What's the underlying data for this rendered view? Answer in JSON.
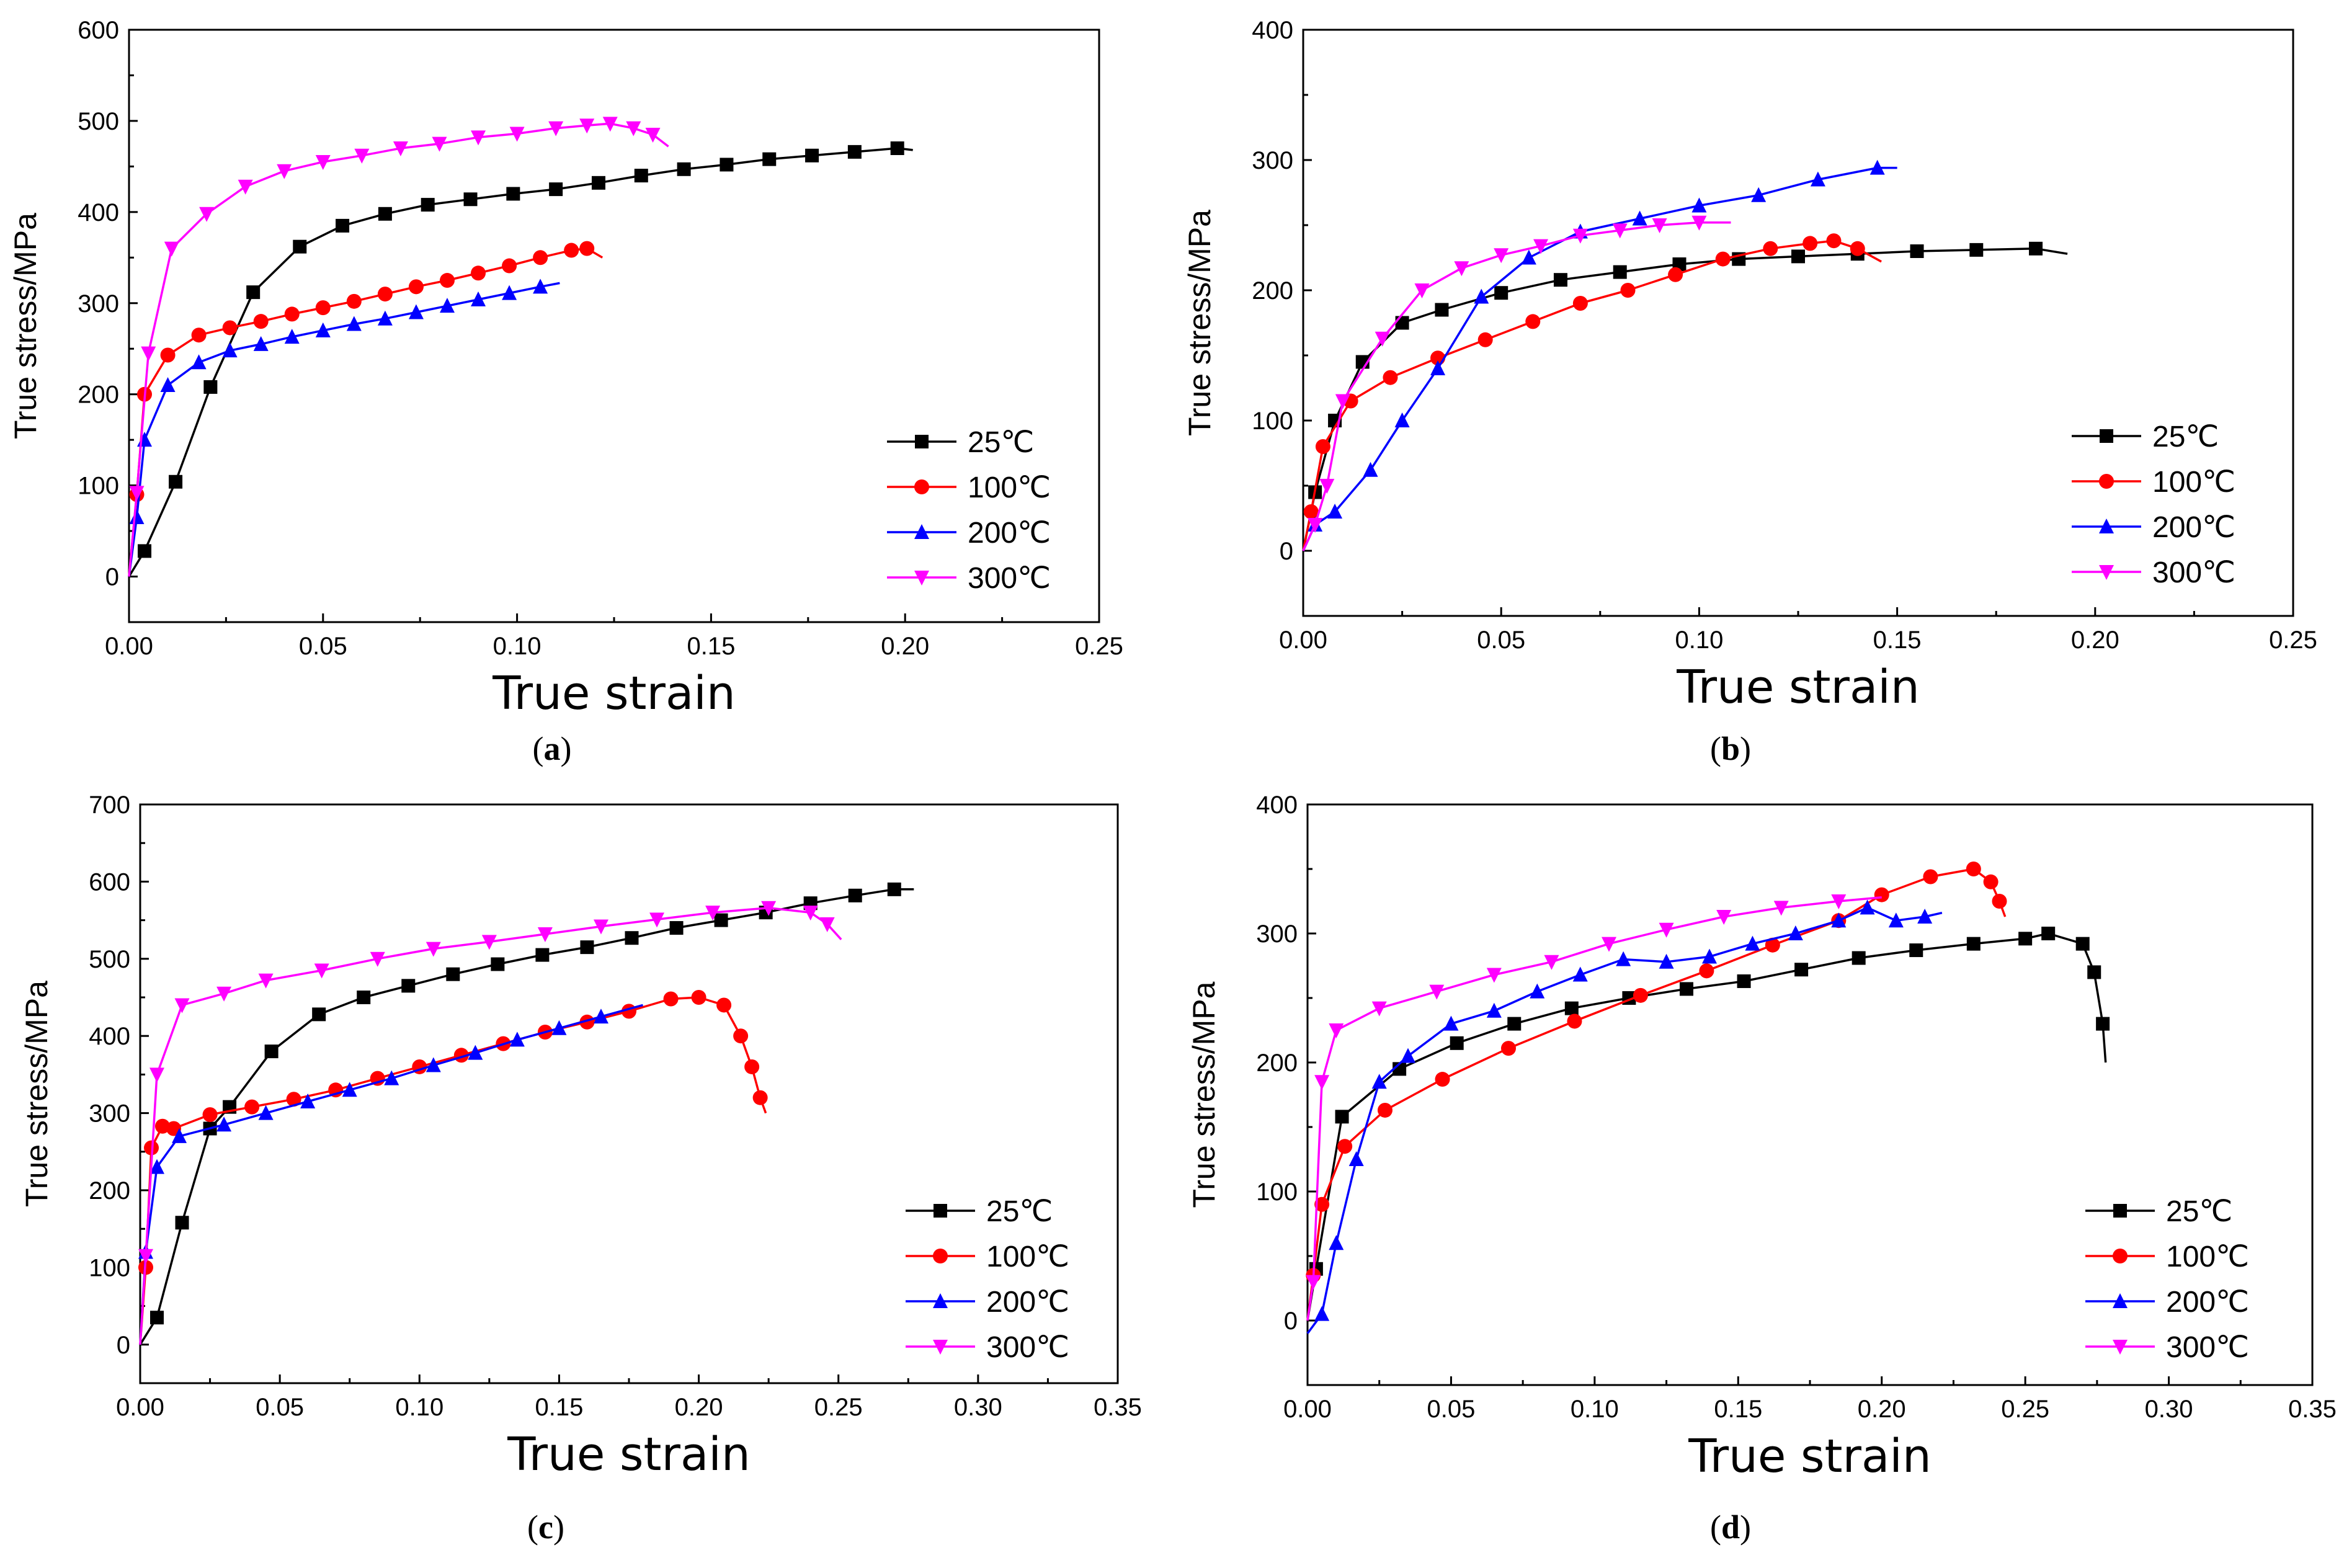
{
  "figure": {
    "panel_labels": [
      "(a)",
      "(b)",
      "(c)",
      "(d)"
    ],
    "series_colors": {
      "25℃": "#000000",
      "100℃": "#ff0000",
      "200℃": "#0000ff",
      "300℃": "#ff00ff"
    },
    "series_markers": {
      "25℃": "square",
      "100℃": "circle",
      "200℃": "triangle-up",
      "300℃": "triangle-down"
    }
  },
  "chart_data": [
    {
      "panel": "a",
      "type": "line",
      "xlabel": "True strain",
      "ylabel": "True stress/MPa",
      "xlim": [
        0,
        0.25
      ],
      "ylim": [
        -50,
        600
      ],
      "xticks": [
        "0.00",
        "0.05",
        "0.10",
        "0.15",
        "0.20",
        "0.25"
      ],
      "yticks": [
        "0",
        "100",
        "200",
        "300",
        "400",
        "500",
        "600"
      ],
      "legend_position": "bottom-right",
      "series": [
        {
          "name": "25℃",
          "x": [
            0,
            0.004,
            0.012,
            0.021,
            0.032,
            0.044,
            0.055,
            0.066,
            0.077,
            0.088,
            0.099,
            0.11,
            0.121,
            0.132,
            0.143,
            0.154,
            0.165,
            0.176,
            0.187,
            0.198,
            0.202
          ],
          "y": [
            0,
            28,
            104,
            208,
            312,
            362,
            385,
            398,
            408,
            414,
            420,
            425,
            432,
            440,
            447,
            452,
            458,
            462,
            466,
            470,
            468
          ]
        },
        {
          "name": "100℃",
          "x": [
            0,
            0.002,
            0.004,
            0.01,
            0.018,
            0.026,
            0.034,
            0.042,
            0.05,
            0.058,
            0.066,
            0.074,
            0.082,
            0.09,
            0.098,
            0.106,
            0.114,
            0.118,
            0.122
          ],
          "y": [
            0,
            90,
            200,
            243,
            265,
            273,
            280,
            288,
            295,
            302,
            310,
            318,
            325,
            333,
            341,
            350,
            358,
            360,
            350
          ]
        },
        {
          "name": "200℃",
          "x": [
            0,
            0.002,
            0.004,
            0.01,
            0.018,
            0.026,
            0.034,
            0.042,
            0.05,
            0.058,
            0.066,
            0.074,
            0.082,
            0.09,
            0.098,
            0.106,
            0.111
          ],
          "y": [
            0,
            65,
            150,
            210,
            235,
            248,
            255,
            263,
            270,
            277,
            283,
            290,
            297,
            304,
            311,
            318,
            322
          ]
        },
        {
          "name": "300℃",
          "x": [
            0,
            0.002,
            0.005,
            0.011,
            0.02,
            0.03,
            0.04,
            0.05,
            0.06,
            0.07,
            0.08,
            0.09,
            0.1,
            0.11,
            0.118,
            0.124,
            0.13,
            0.135,
            0.139
          ],
          "y": [
            0,
            92,
            245,
            360,
            398,
            428,
            445,
            455,
            462,
            470,
            475,
            482,
            486,
            492,
            495,
            497,
            492,
            485,
            472
          ]
        }
      ]
    },
    {
      "panel": "b",
      "type": "line",
      "xlabel": "True strain",
      "ylabel": "True stress/MPa",
      "xlim": [
        0,
        0.25
      ],
      "ylim": [
        -50,
        400
      ],
      "xticks": [
        "0.00",
        "0.05",
        "0.10",
        "0.15",
        "0.20",
        "0.25"
      ],
      "yticks": [
        "0",
        "100",
        "200",
        "300",
        "400"
      ],
      "legend_position": "bottom-right",
      "series": [
        {
          "name": "25℃",
          "x": [
            0,
            0.003,
            0.008,
            0.015,
            0.025,
            0.035,
            0.05,
            0.065,
            0.08,
            0.095,
            0.11,
            0.125,
            0.14,
            0.155,
            0.17,
            0.185,
            0.193
          ],
          "y": [
            0,
            45,
            100,
            145,
            175,
            185,
            198,
            208,
            214,
            220,
            224,
            226,
            228,
            230,
            231,
            232,
            228
          ]
        },
        {
          "name": "100℃",
          "x": [
            0,
            0.002,
            0.005,
            0.012,
            0.022,
            0.034,
            0.046,
            0.058,
            0.07,
            0.082,
            0.094,
            0.106,
            0.118,
            0.128,
            0.134,
            0.14,
            0.146
          ],
          "y": [
            0,
            30,
            80,
            115,
            133,
            148,
            162,
            176,
            190,
            200,
            212,
            224,
            232,
            236,
            238,
            232,
            222
          ]
        },
        {
          "name": "200℃",
          "x": [
            0,
            0.003,
            0.008,
            0.017,
            0.025,
            0.034,
            0.045,
            0.057,
            0.07,
            0.085,
            0.1,
            0.115,
            0.13,
            0.145,
            0.15
          ],
          "y": [
            0,
            20,
            30,
            62,
            100,
            140,
            195,
            225,
            245,
            255,
            265,
            273,
            285,
            294,
            294
          ]
        },
        {
          "name": "300℃",
          "x": [
            0,
            0.003,
            0.006,
            0.01,
            0.02,
            0.03,
            0.04,
            0.05,
            0.06,
            0.07,
            0.08,
            0.09,
            0.1,
            0.108
          ],
          "y": [
            0,
            20,
            50,
            115,
            163,
            200,
            217,
            227,
            234,
            242,
            246,
            250,
            252,
            252
          ]
        }
      ]
    },
    {
      "panel": "c",
      "type": "line",
      "xlabel": "True strain",
      "ylabel": "True stress/MPa",
      "xlim": [
        0,
        0.35
      ],
      "ylim": [
        -50,
        700
      ],
      "xticks": [
        "0.00",
        "0.05",
        "0.10",
        "0.15",
        "0.20",
        "0.25",
        "0.30",
        "0.35"
      ],
      "yticks": [
        "0",
        "100",
        "200",
        "300",
        "400",
        "500",
        "600",
        "700"
      ],
      "legend_position": "bottom-right",
      "series": [
        {
          "name": "25℃",
          "x": [
            0,
            0.006,
            0.015,
            0.025,
            0.032,
            0.047,
            0.064,
            0.08,
            0.096,
            0.112,
            0.128,
            0.144,
            0.16,
            0.176,
            0.192,
            0.208,
            0.224,
            0.24,
            0.256,
            0.27,
            0.277
          ],
          "y": [
            0,
            35,
            158,
            280,
            308,
            380,
            428,
            450,
            465,
            480,
            493,
            505,
            515,
            527,
            540,
            550,
            560,
            572,
            582,
            590,
            590
          ]
        },
        {
          "name": "100℃",
          "x": [
            0,
            0.002,
            0.004,
            0.008,
            0.012,
            0.025,
            0.04,
            0.055,
            0.07,
            0.085,
            0.1,
            0.115,
            0.13,
            0.145,
            0.16,
            0.175,
            0.19,
            0.2,
            0.209,
            0.215,
            0.219,
            0.222,
            0.224
          ],
          "y": [
            0,
            100,
            255,
            283,
            280,
            298,
            308,
            318,
            330,
            345,
            360,
            375,
            390,
            405,
            418,
            432,
            448,
            450,
            440,
            400,
            360,
            320,
            300
          ]
        },
        {
          "name": "200℃",
          "x": [
            0,
            0.002,
            0.006,
            0.014,
            0.03,
            0.045,
            0.06,
            0.075,
            0.09,
            0.105,
            0.12,
            0.135,
            0.15,
            0.165,
            0.18
          ],
          "y": [
            0,
            120,
            230,
            270,
            285,
            300,
            315,
            330,
            345,
            362,
            378,
            395,
            410,
            425,
            440
          ]
        },
        {
          "name": "300℃",
          "x": [
            0,
            0.002,
            0.006,
            0.015,
            0.03,
            0.045,
            0.065,
            0.085,
            0.105,
            0.125,
            0.145,
            0.165,
            0.185,
            0.205,
            0.225,
            0.24,
            0.246,
            0.251
          ],
          "y": [
            0,
            115,
            350,
            440,
            455,
            472,
            485,
            500,
            513,
            522,
            532,
            542,
            551,
            560,
            566,
            560,
            545,
            525
          ]
        }
      ]
    },
    {
      "panel": "d",
      "type": "line",
      "xlabel": "True strain",
      "ylabel": "True stress/MPa",
      "xlim": [
        0,
        0.35
      ],
      "ylim": [
        -50,
        400
      ],
      "xticks": [
        "0.00",
        "0.05",
        "0.10",
        "0.15",
        "0.20",
        "0.25",
        "0.30",
        "0.35"
      ],
      "yticks": [
        "0",
        "100",
        "200",
        "300",
        "400"
      ],
      "legend_position": "bottom-right",
      "series": [
        {
          "name": "25℃",
          "x": [
            0,
            0.003,
            0.012,
            0.032,
            0.052,
            0.072,
            0.092,
            0.112,
            0.132,
            0.152,
            0.172,
            0.192,
            0.212,
            0.232,
            0.25,
            0.258,
            0.27,
            0.274,
            0.277,
            0.278
          ],
          "y": [
            0,
            40,
            158,
            195,
            215,
            230,
            242,
            250,
            257,
            263,
            272,
            281,
            287,
            292,
            296,
            300,
            292,
            270,
            230,
            200
          ]
        },
        {
          "name": "100℃",
          "x": [
            0,
            0.002,
            0.005,
            0.013,
            0.027,
            0.047,
            0.07,
            0.093,
            0.116,
            0.139,
            0.162,
            0.185,
            0.2,
            0.217,
            0.232,
            0.238,
            0.241,
            0.243
          ],
          "y": [
            0,
            35,
            90,
            135,
            163,
            187,
            211,
            232,
            252,
            271,
            291,
            310,
            330,
            344,
            350,
            340,
            325,
            313
          ]
        },
        {
          "name": "200℃",
          "x": [
            0,
            0.005,
            0.01,
            0.017,
            0.025,
            0.035,
            0.05,
            0.065,
            0.08,
            0.095,
            0.11,
            0.125,
            0.14,
            0.155,
            0.17,
            0.185,
            0.195,
            0.205,
            0.215,
            0.221
          ],
          "y": [
            -10,
            5,
            60,
            125,
            185,
            205,
            230,
            240,
            255,
            268,
            280,
            278,
            282,
            292,
            300,
            310,
            320,
            310,
            313,
            316
          ]
        },
        {
          "name": "300℃",
          "x": [
            0,
            0.002,
            0.005,
            0.01,
            0.025,
            0.045,
            0.065,
            0.085,
            0.105,
            0.125,
            0.145,
            0.165,
            0.185,
            0.2
          ],
          "y": [
            0,
            30,
            185,
            225,
            242,
            255,
            268,
            278,
            292,
            303,
            313,
            320,
            325,
            328
          ]
        }
      ]
    }
  ]
}
